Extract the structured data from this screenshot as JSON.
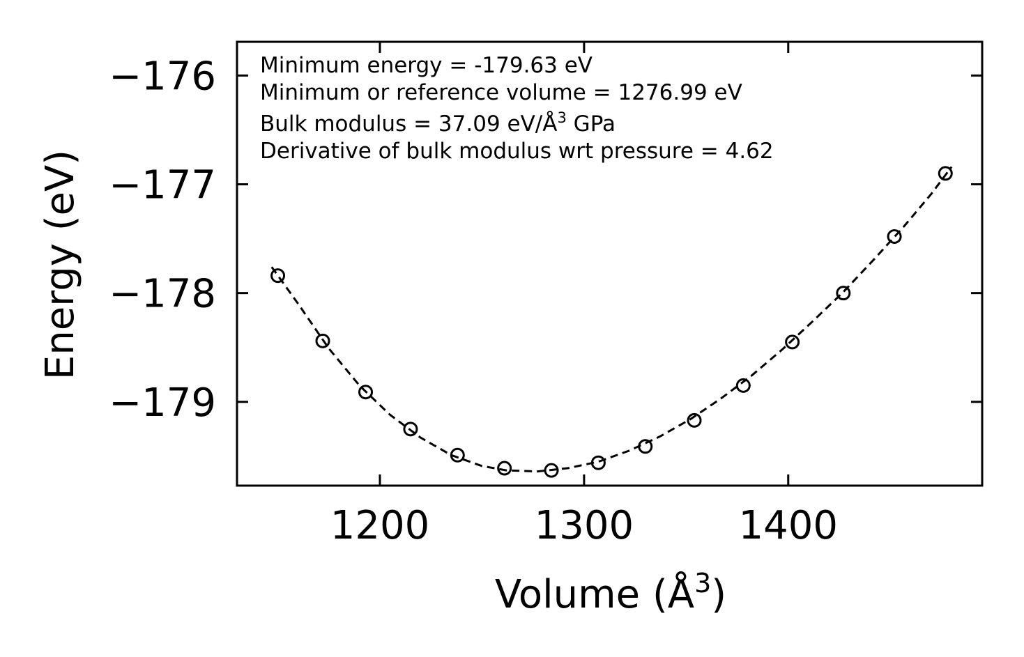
{
  "chart_data": {
    "type": "scatter",
    "xlabel": "Volume (Å",
    "xlabel_sup": "3",
    "xlabel_close": ")",
    "ylabel": "Energy (eV)",
    "xlim": [
      1130,
      1495
    ],
    "ylim": [
      -179.77,
      -175.69
    ],
    "xticks": [
      1200,
      1300,
      1400
    ],
    "xtick_labels": [
      "1200",
      "1300",
      "1400"
    ],
    "yticks": [
      -176,
      -177,
      -178,
      -179
    ],
    "ytick_labels": [
      "−176",
      "−177",
      "−178",
      "−179"
    ],
    "annotations": {
      "min_energy": "Minimum energy = -179.63 eV",
      "min_volume": "Minimum or reference volume = 1276.99 eV",
      "bulk_modulus_prefix": "Bulk modulus = 37.09 eV/Å",
      "bulk_modulus_sup": "3",
      "bulk_modulus_suffix": " GPa",
      "bulk_derivative": "Derivative of bulk modulus wrt pressure = 4.62"
    },
    "series": [
      {
        "name": "data",
        "style": "open-circle",
        "x": [
          1150,
          1172,
          1193,
          1215,
          1238,
          1261,
          1284,
          1307,
          1330,
          1354,
          1378,
          1402,
          1427,
          1452,
          1477
        ],
        "y": [
          -177.84,
          -178.44,
          -178.91,
          -179.25,
          -179.49,
          -179.61,
          -179.63,
          -179.56,
          -179.41,
          -179.17,
          -178.85,
          -178.45,
          -178.0,
          -177.48,
          -176.9
        ]
      },
      {
        "name": "fit",
        "style": "dashed",
        "x": [
          1147,
          1160,
          1175,
          1190,
          1205,
          1220,
          1235,
          1250,
          1262,
          1277,
          1292,
          1307,
          1322,
          1337,
          1352,
          1367,
          1382,
          1397,
          1412,
          1427,
          1442,
          1457,
          1470,
          1480
        ],
        "y": [
          -177.76,
          -178.1,
          -178.51,
          -178.85,
          -179.12,
          -179.33,
          -179.49,
          -179.59,
          -179.63,
          -179.64,
          -179.61,
          -179.55,
          -179.45,
          -179.32,
          -179.16,
          -178.97,
          -178.76,
          -178.52,
          -178.26,
          -177.99,
          -177.69,
          -177.38,
          -177.09,
          -176.84
        ]
      }
    ]
  }
}
